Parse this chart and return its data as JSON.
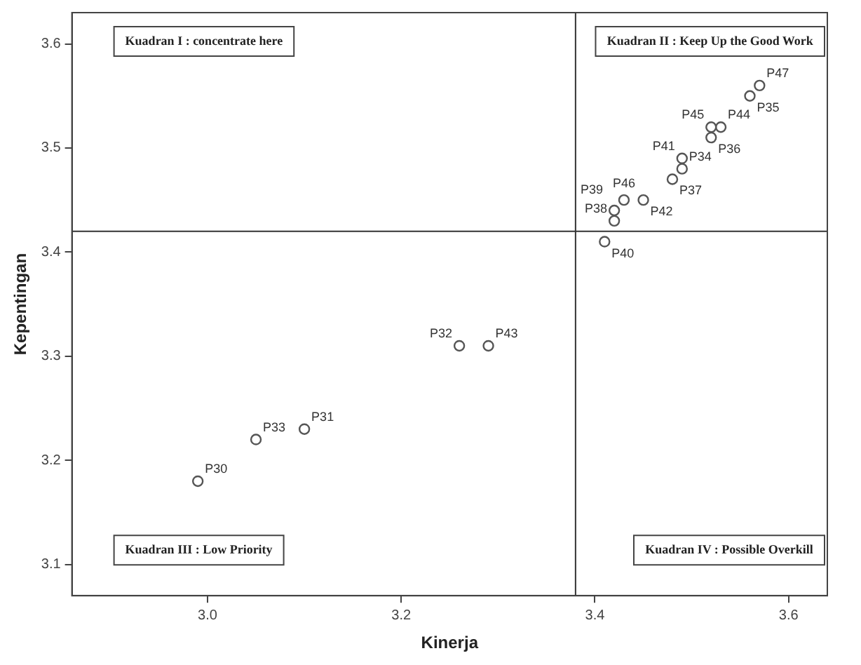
{
  "chart_data": {
    "type": "scatter",
    "xlabel": "Kinerja",
    "ylabel": "Kepentingan",
    "x": [
      2.99,
      3.05,
      3.1,
      3.26,
      3.29,
      3.41,
      3.42,
      3.42,
      3.43,
      3.45,
      3.48,
      3.49,
      3.49,
      3.52,
      3.52,
      3.53,
      3.56,
      3.57
    ],
    "series": [
      {
        "color": "#555555",
        "values": [
          3.18,
          3.22,
          3.23,
          3.31,
          3.31,
          3.41,
          3.43,
          3.44,
          3.45,
          3.45,
          3.47,
          3.48,
          3.49,
          3.51,
          3.52,
          3.52,
          3.55,
          3.56
        ],
        "value_labels": [
          "P30",
          "P33",
          "P31",
          "P32",
          "P43",
          "P40",
          "P38",
          "P39",
          "P46",
          "P42",
          "P37",
          "P34",
          "P41",
          "P36",
          "P45",
          "P44",
          "P35",
          "P47"
        ]
      }
    ],
    "marker": "circle",
    "xlim": [
      2.86,
      3.64
    ],
    "ylim": [
      3.07,
      3.63
    ],
    "xticks": [
      {
        "value": 3,
        "label": "3.0"
      },
      {
        "value": 3.2,
        "label": "3.2"
      },
      {
        "value": 3.4,
        "label": "3.4"
      },
      {
        "value": 3.6,
        "label": "3.6"
      }
    ],
    "yticks": [
      3.1,
      3.2,
      3.3,
      3.4,
      3.5,
      3.6
    ],
    "grid": false,
    "legend": false,
    "ref_lines": [
      {
        "axis": "x",
        "value": 3.38,
        "color": "#333333"
      },
      {
        "axis": "y",
        "value": 3.42,
        "color": "#333333"
      }
    ],
    "annotations": [
      "Kuadran I : concentrate here",
      "Kuadran II : Keep Up the Good Work",
      "Kuadran III : Low Priority",
      "Kuadran IV : Possible Overkill"
    ]
  }
}
